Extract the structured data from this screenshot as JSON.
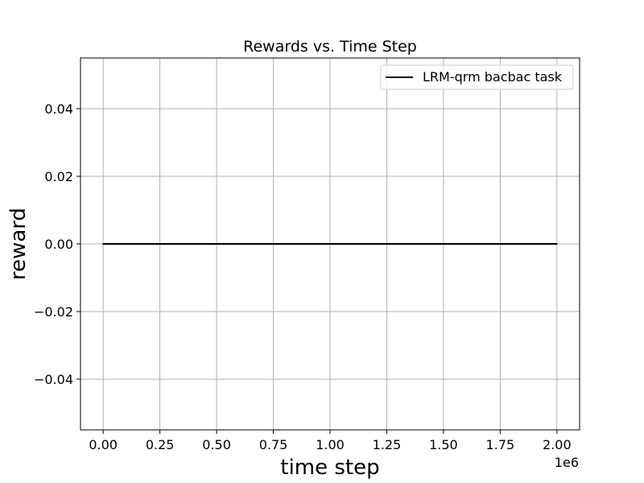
{
  "chart_data": {
    "type": "line",
    "title": "Rewards vs. Time Step",
    "xlabel": "time step",
    "ylabel": "reward",
    "x_offset_label": "1e6",
    "xlim": [
      -0.1,
      2.1
    ],
    "ylim": [
      -0.055,
      0.055
    ],
    "x_ticks": [
      0.0,
      0.25,
      0.5,
      0.75,
      1.0,
      1.25,
      1.5,
      1.75,
      2.0
    ],
    "x_tick_labels": [
      "0.00",
      "0.25",
      "0.50",
      "0.75",
      "1.00",
      "1.25",
      "1.50",
      "1.75",
      "2.00"
    ],
    "y_ticks": [
      -0.04,
      -0.02,
      0.0,
      0.02,
      0.04
    ],
    "y_tick_labels": [
      "−0.04",
      "−0.02",
      "0.00",
      "0.02",
      "0.04"
    ],
    "grid": true,
    "legend_position": "top-right",
    "series": [
      {
        "name": "LRM-qrm bacbac task",
        "color": "#000000",
        "x": [
          0.0,
          0.25,
          0.5,
          0.75,
          1.0,
          1.25,
          1.5,
          1.75,
          2.0
        ],
        "y": [
          0.0,
          0.0,
          0.0,
          0.0,
          0.0,
          0.0,
          0.0,
          0.0,
          0.0
        ]
      }
    ]
  }
}
